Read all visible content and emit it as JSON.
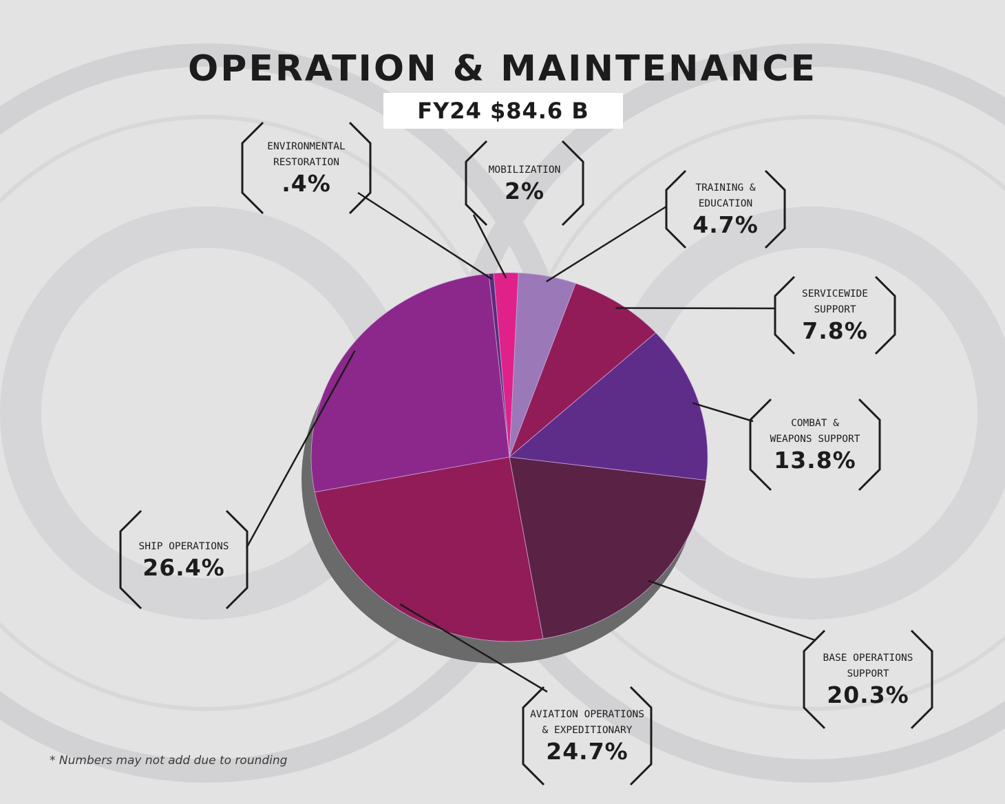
{
  "title": "OPERATION & MAINTENANCE",
  "subtitle": "FY24 $84.6 B",
  "footnote": "*  Numbers may not add due to rounding",
  "chart_data": {
    "type": "pie",
    "title": "OPERATION & MAINTENANCE",
    "subtitle": "FY24 $84.6 B",
    "units": "%",
    "slices": [
      {
        "label_lines": [
          "ENVIRONMENTAL",
          "RESTORATION"
        ],
        "value": 0.4,
        "value_label": ".4%",
        "color": "#5b2c7a"
      },
      {
        "label_lines": [
          "MOBILIZATION"
        ],
        "value": 2,
        "value_label": "2%",
        "color": "#e0218a"
      },
      {
        "label_lines": [
          "TRAINING &",
          "EDUCATION"
        ],
        "value": 4.7,
        "value_label": "4.7%",
        "color": "#9b79b8"
      },
      {
        "label_lines": [
          "SERVICEWIDE",
          "SUPPORT"
        ],
        "value": 7.8,
        "value_label": "7.8%",
        "color": "#921c58"
      },
      {
        "label_lines": [
          "COMBAT &",
          "WEAPONS SUPPORT"
        ],
        "value": 13.8,
        "value_label": "13.8%",
        "color": "#5e2d8a"
      },
      {
        "label_lines": [
          "BASE OPERATIONS",
          "SUPPORT"
        ],
        "value": 20.3,
        "value_label": "20.3%",
        "color": "#5a2245"
      },
      {
        "label_lines": [
          "AVIATION OPERATIONS",
          "& EXPEDITIONARY"
        ],
        "value": 24.7,
        "value_label": "24.7%",
        "color": "#921c58"
      },
      {
        "label_lines": [
          "SHIP OPERATIONS"
        ],
        "value": 26.4,
        "value_label": "26.4%",
        "color": "#8c288b"
      }
    ],
    "shadow_color": "#6a6a6a"
  }
}
